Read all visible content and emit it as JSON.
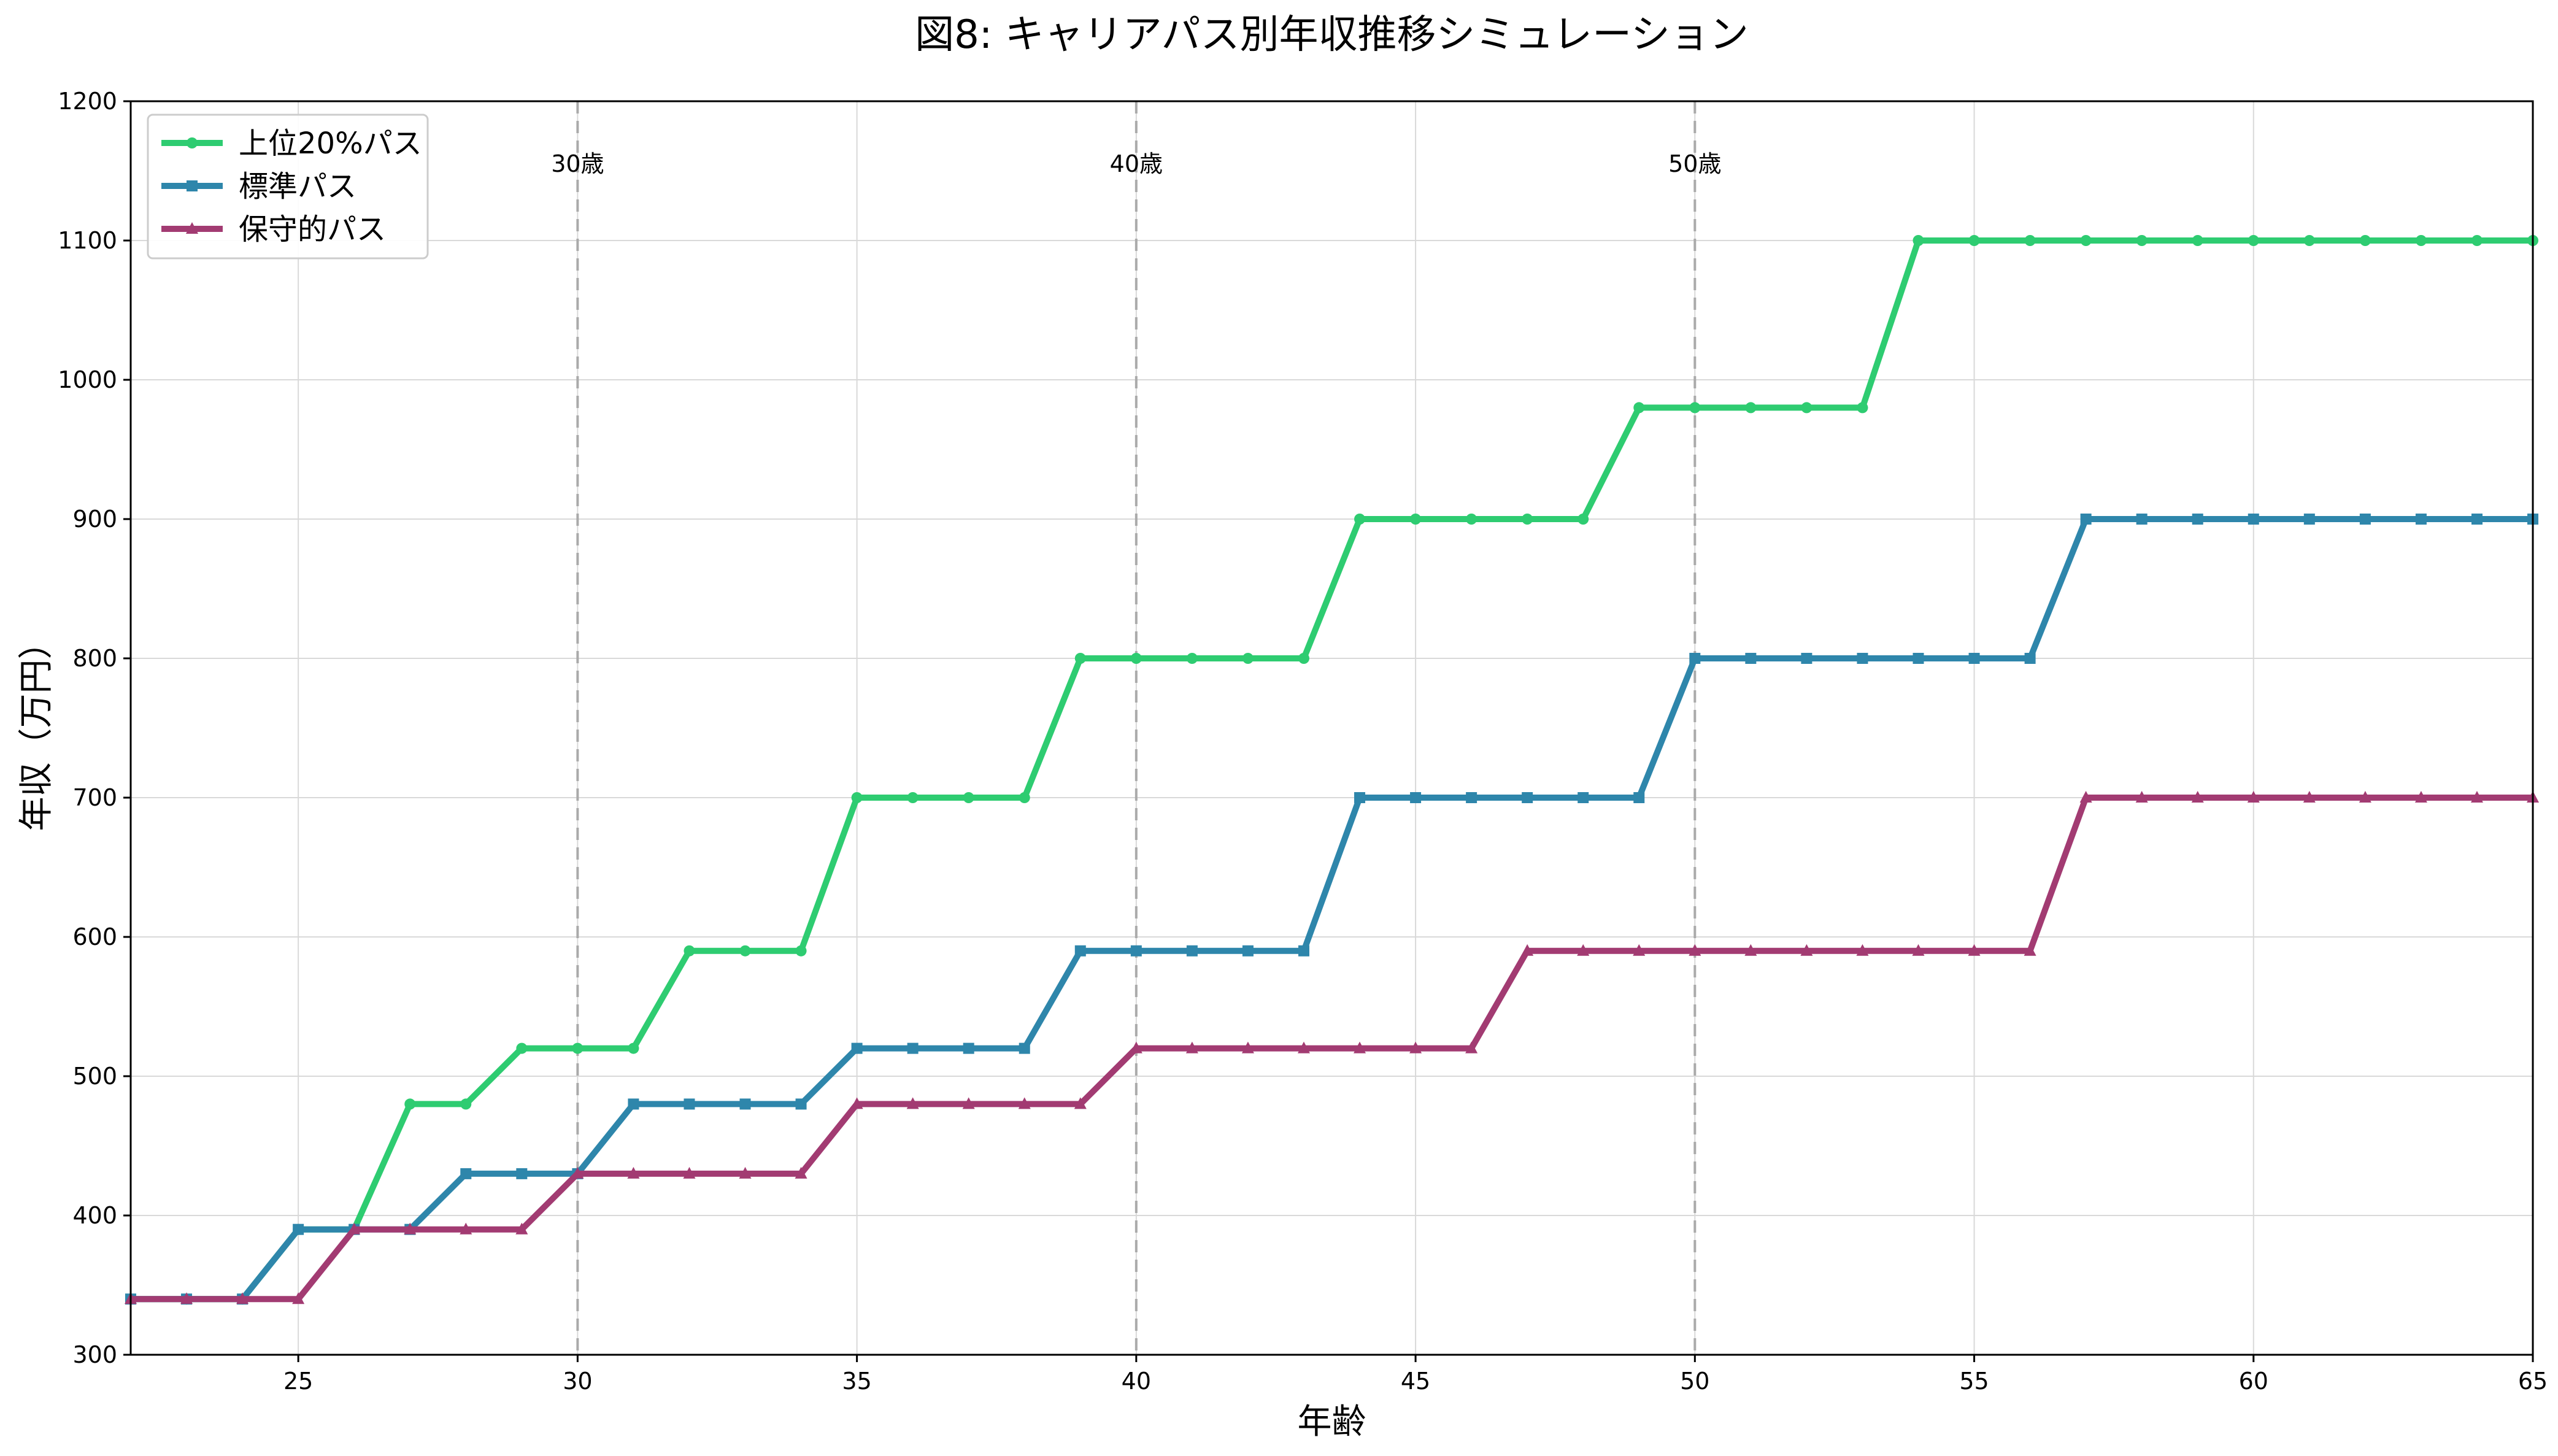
{
  "chart_data": {
    "type": "line",
    "title": "図8: キャリアパス別年収推移シミュレーション",
    "xlabel": "年齢",
    "ylabel": "年収（万円）",
    "xlim": [
      22,
      65
    ],
    "ylim": [
      300,
      1200
    ],
    "xticks": [
      25,
      30,
      35,
      40,
      45,
      50,
      55,
      60,
      65
    ],
    "yticks": [
      300,
      400,
      500,
      600,
      700,
      800,
      900,
      1000,
      1100,
      1200
    ],
    "grid": true,
    "legend_position": "upper-left",
    "x": [
      22,
      23,
      24,
      25,
      26,
      27,
      28,
      29,
      30,
      31,
      32,
      33,
      34,
      35,
      36,
      37,
      38,
      39,
      40,
      41,
      42,
      43,
      44,
      45,
      46,
      47,
      48,
      49,
      50,
      51,
      52,
      53,
      54,
      55,
      56,
      57,
      58,
      59,
      60,
      61,
      62,
      63,
      64,
      65
    ],
    "series": [
      {
        "name": "上位20%パス",
        "color": "#2ecc71",
        "marker": "circle",
        "values": [
          340,
          340,
          340,
          390,
          390,
          480,
          480,
          520,
          520,
          520,
          590,
          590,
          590,
          700,
          700,
          700,
          700,
          800,
          800,
          800,
          800,
          800,
          900,
          900,
          900,
          900,
          900,
          980,
          980,
          980,
          980,
          980,
          1100,
          1100,
          1100,
          1100,
          1100,
          1100,
          1100,
          1100,
          1100,
          1100,
          1100,
          1100
        ]
      },
      {
        "name": "標準パス",
        "color": "#2e86ab",
        "marker": "square",
        "values": [
          340,
          340,
          340,
          390,
          390,
          390,
          430,
          430,
          430,
          480,
          480,
          480,
          480,
          520,
          520,
          520,
          520,
          590,
          590,
          590,
          590,
          590,
          700,
          700,
          700,
          700,
          700,
          700,
          800,
          800,
          800,
          800,
          800,
          800,
          800,
          900,
          900,
          900,
          900,
          900,
          900,
          900,
          900,
          900
        ]
      },
      {
        "name": "保守的パス",
        "color": "#a23b72",
        "marker": "triangle",
        "values": [
          340,
          340,
          340,
          340,
          390,
          390,
          390,
          390,
          430,
          430,
          430,
          430,
          430,
          480,
          480,
          480,
          480,
          480,
          520,
          520,
          520,
          520,
          520,
          520,
          520,
          590,
          590,
          590,
          590,
          590,
          590,
          590,
          590,
          590,
          590,
          700,
          700,
          700,
          700,
          700,
          700,
          700,
          700,
          700
        ]
      }
    ],
    "annotations": [
      {
        "x": 30,
        "label": "30歳"
      },
      {
        "x": 40,
        "label": "40歳"
      },
      {
        "x": 50,
        "label": "50歳"
      }
    ]
  }
}
